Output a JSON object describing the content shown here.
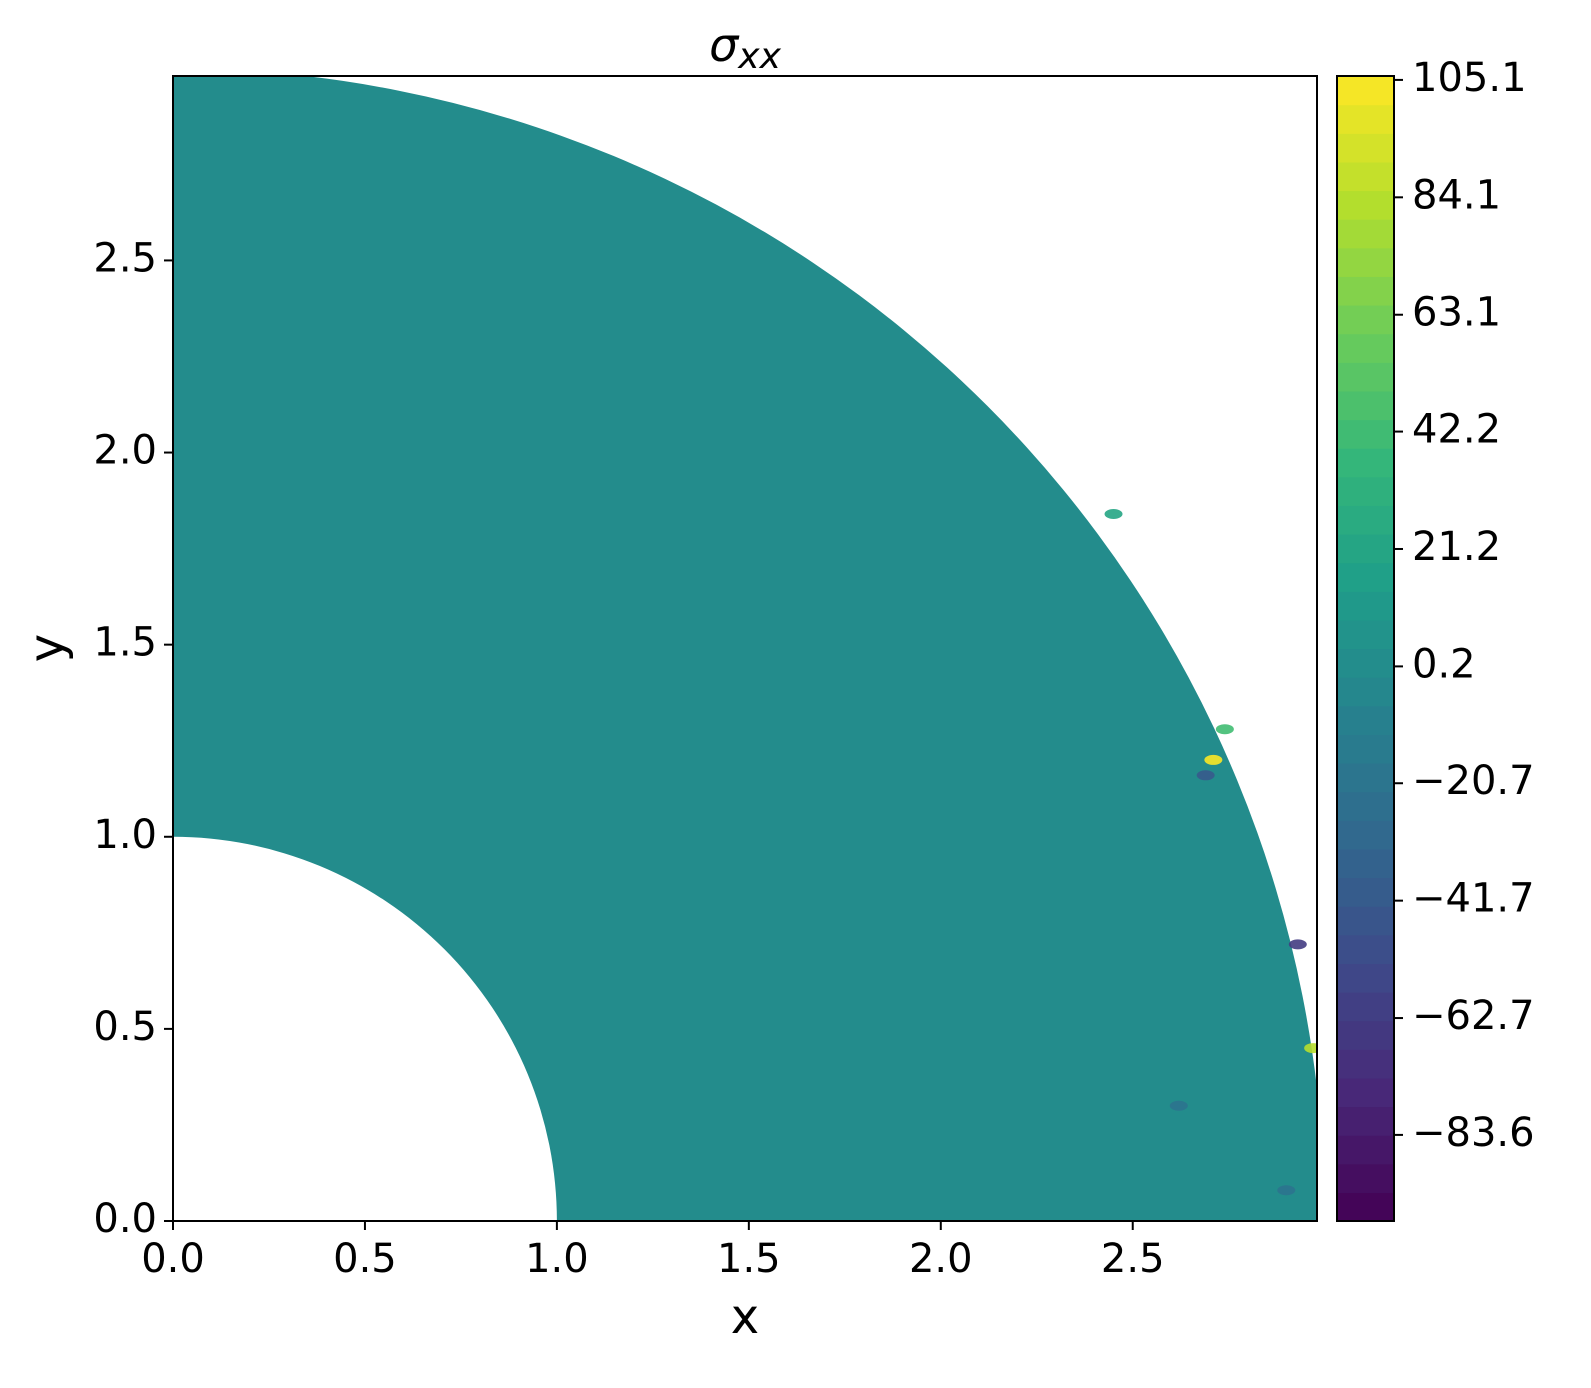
{
  "chart_data": {
    "type": "contour",
    "title": {
      "symbol": "σ",
      "subscript": "xx"
    },
    "xlabel": "x",
    "ylabel": "y",
    "xlim": [
      0,
      2.98
    ],
    "ylim": [
      0,
      2.98
    ],
    "xticks": [
      {
        "value": 0,
        "label": "0.0"
      },
      0.5,
      {
        "value": 1,
        "label": "1.0"
      },
      1.5,
      {
        "value": 2,
        "label": "2.0"
      },
      2.5
    ],
    "yticks": [
      {
        "value": 0,
        "label": "0.0"
      },
      0.5,
      {
        "value": 1,
        "label": "1.0"
      },
      1.5,
      {
        "value": 2,
        "label": "2.0"
      },
      2.5
    ],
    "colormap": "viridis",
    "clim": [
      -99,
      105.8
    ],
    "cticks": [
      {
        "value": -83.6,
        "label": "−83.6"
      },
      {
        "value": -62.7,
        "label": "−62.7"
      },
      {
        "value": -41.7,
        "label": "−41.7"
      },
      {
        "value": -20.7,
        "label": "−20.7"
      },
      0.2,
      21.2,
      42.2,
      63.1,
      84.1,
      105.1
    ],
    "field": {
      "inner_radius": 1,
      "outer_radius": 3,
      "base_value": 0.2,
      "hotspots": [
        {
          "x": 2.71,
          "y": 1.2,
          "value": 105.1
        },
        {
          "x": 2.69,
          "y": 1.16,
          "value": -41.7
        },
        {
          "x": 2.74,
          "y": 1.28,
          "value": 42.2
        },
        {
          "x": 2.97,
          "y": 0.45,
          "value": 84.1
        },
        {
          "x": 2.93,
          "y": 0.72,
          "value": -62.7
        },
        {
          "x": 2.62,
          "y": 0.3,
          "value": -20.7
        },
        {
          "x": 2.45,
          "y": 1.84,
          "value": 21.2
        },
        {
          "x": 2.9,
          "y": 0.08,
          "value": -20.7
        }
      ]
    }
  }
}
